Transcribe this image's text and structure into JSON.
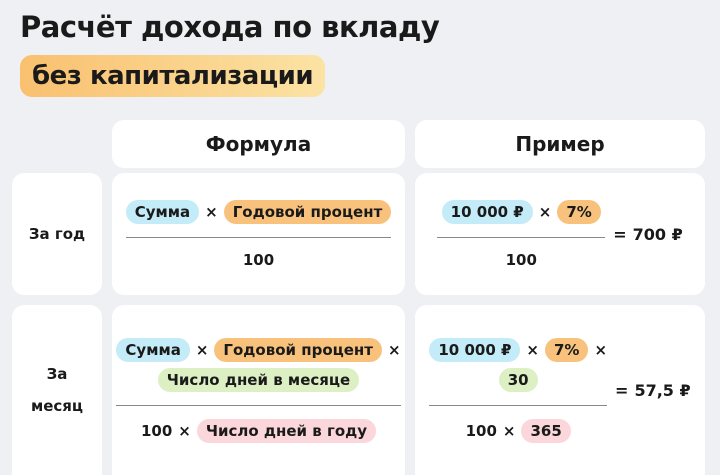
{
  "header": {
    "title": "Расчёт дохода по вкладу",
    "subtitle": "без капитализации"
  },
  "table": {
    "columns": [
      "Формула",
      "Пример"
    ],
    "rows": [
      {
        "label": "За год",
        "formula": {
          "numerator": [
            [
              {
                "text": "Сумма",
                "color": "#c3ebf8"
              },
              "×",
              {
                "text": "Годовой процент",
                "color": "#f8c27c"
              }
            ]
          ],
          "denominator": [
            "100"
          ]
        },
        "example": {
          "numerator": [
            [
              {
                "text": "10 000 ₽",
                "color": "#c3ebf8"
              },
              "×",
              {
                "text": "7%",
                "color": "#f8c27c"
              }
            ]
          ],
          "denominator": [
            "100"
          ],
          "result": [
            "=",
            "700 ₽"
          ]
        }
      },
      {
        "label": "За месяц",
        "formula": {
          "numerator": [
            [
              {
                "text": "Сумма",
                "color": "#c3ebf8"
              },
              "×",
              {
                "text": "Годовой процент",
                "color": "#f8c27c"
              },
              "×"
            ],
            [
              {
                "text": "Число дней в месяце",
                "color": "#ddf0c4"
              }
            ]
          ],
          "denominator": [
            "100",
            "×",
            {
              "text": "Число дней в году",
              "color": "#fbd6da"
            }
          ]
        },
        "example": {
          "numerator": [
            [
              {
                "text": "10 000 ₽",
                "color": "#c3ebf8"
              },
              "×",
              {
                "text": "7%",
                "color": "#f8c27c"
              },
              "×"
            ],
            [
              {
                "text": "30",
                "color": "#ddf0c4"
              }
            ]
          ],
          "denominator": [
            "100",
            "×",
            {
              "text": "365",
              "color": "#fbd6da"
            }
          ],
          "result": [
            "=",
            "57,5 ₽"
          ]
        }
      }
    ]
  }
}
